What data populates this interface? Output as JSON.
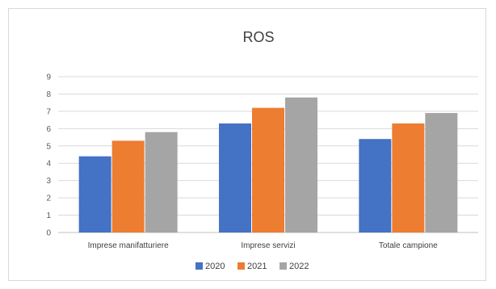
{
  "chart_data": {
    "type": "bar",
    "title": "ROS",
    "categories": [
      "Imprese manifatturiere",
      "Imprese servizi",
      "Totale campione"
    ],
    "series": [
      {
        "name": "2020",
        "color": "#4472c4",
        "values": [
          4.4,
          6.3,
          5.4
        ]
      },
      {
        "name": "2021",
        "color": "#ed7d31",
        "values": [
          5.3,
          7.2,
          6.3
        ]
      },
      {
        "name": "2022",
        "color": "#a5a5a5",
        "values": [
          5.8,
          7.8,
          6.9
        ]
      }
    ],
    "ylim": [
      0,
      9
    ],
    "yticks": [
      0,
      1,
      2,
      3,
      4,
      5,
      6,
      7,
      8,
      9
    ],
    "xlabel": "",
    "ylabel": "",
    "grid": true,
    "legend_position": "bottom"
  }
}
